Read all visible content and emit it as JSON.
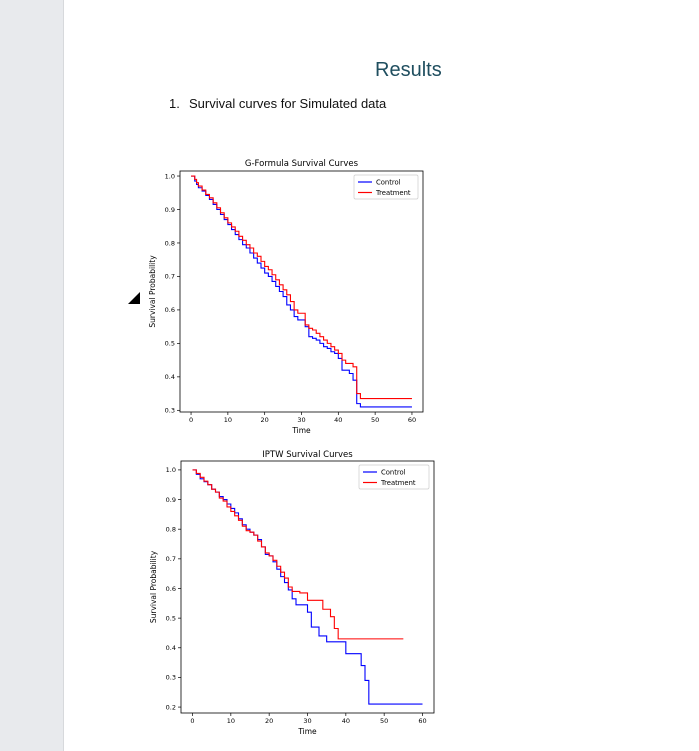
{
  "document": {
    "heading": "Results",
    "list_item_number": "1.",
    "list_item_text": "Survival curves for Simulated data"
  },
  "chart_data": [
    {
      "type": "line",
      "title": "G-Formula Survival Curves",
      "xlabel": "Time",
      "ylabel": "Survival Probability",
      "xlim": [
        -3,
        63
      ],
      "ylim": [
        0.295,
        1.015
      ],
      "xticks": [
        0,
        10,
        20,
        30,
        40,
        50,
        60
      ],
      "yticks": [
        0.3,
        0.4,
        0.5,
        0.6,
        0.7,
        0.8,
        0.9,
        1.0
      ],
      "legend": "top-right",
      "series": [
        {
          "name": "Control",
          "color": "#0000ff",
          "step": true,
          "points": [
            [
              0,
              1.0
            ],
            [
              1,
              0.985
            ],
            [
              1.5,
              0.975
            ],
            [
              2,
              0.965
            ],
            [
              3,
              0.955
            ],
            [
              4,
              0.942
            ],
            [
              5,
              0.93
            ],
            [
              6,
              0.915
            ],
            [
              7,
              0.9
            ],
            [
              8,
              0.885
            ],
            [
              9,
              0.87
            ],
            [
              10,
              0.855
            ],
            [
              11,
              0.84
            ],
            [
              12,
              0.825
            ],
            [
              13,
              0.81
            ],
            [
              14,
              0.795
            ],
            [
              15,
              0.785
            ],
            [
              16,
              0.77
            ],
            [
              17,
              0.755
            ],
            [
              18,
              0.74
            ],
            [
              19,
              0.725
            ],
            [
              20,
              0.71
            ],
            [
              21,
              0.7
            ],
            [
              22,
              0.685
            ],
            [
              23,
              0.67
            ],
            [
              24,
              0.655
            ],
            [
              25,
              0.64
            ],
            [
              26,
              0.615
            ],
            [
              27,
              0.6
            ],
            [
              28,
              0.58
            ],
            [
              29,
              0.57
            ],
            [
              30,
              0.57
            ],
            [
              31,
              0.55
            ],
            [
              32,
              0.52
            ],
            [
              33,
              0.515
            ],
            [
              34,
              0.51
            ],
            [
              35,
              0.5
            ],
            [
              36,
              0.49
            ],
            [
              37,
              0.485
            ],
            [
              38,
              0.475
            ],
            [
              39,
              0.47
            ],
            [
              40,
              0.455
            ],
            [
              41,
              0.42
            ],
            [
              42,
              0.42
            ],
            [
              43,
              0.41
            ],
            [
              44,
              0.39
            ],
            [
              45,
              0.32
            ],
            [
              46,
              0.31
            ],
            [
              60,
              0.31
            ]
          ]
        },
        {
          "name": "Treatment",
          "color": "#ff0000",
          "step": true,
          "points": [
            [
              0,
              1.0
            ],
            [
              1,
              0.99
            ],
            [
              1.5,
              0.98
            ],
            [
              2,
              0.97
            ],
            [
              3,
              0.958
            ],
            [
              4,
              0.945
            ],
            [
              5,
              0.935
            ],
            [
              6,
              0.92
            ],
            [
              7,
              0.905
            ],
            [
              8,
              0.89
            ],
            [
              9,
              0.875
            ],
            [
              10,
              0.86
            ],
            [
              11,
              0.848
            ],
            [
              12,
              0.835
            ],
            [
              13,
              0.82
            ],
            [
              14,
              0.808
            ],
            [
              15,
              0.795
            ],
            [
              16,
              0.785
            ],
            [
              17,
              0.77
            ],
            [
              18,
              0.76
            ],
            [
              19,
              0.745
            ],
            [
              20,
              0.73
            ],
            [
              21,
              0.72
            ],
            [
              22,
              0.705
            ],
            [
              23,
              0.69
            ],
            [
              24,
              0.675
            ],
            [
              25,
              0.66
            ],
            [
              26,
              0.645
            ],
            [
              27,
              0.625
            ],
            [
              28,
              0.6
            ],
            [
              29,
              0.59
            ],
            [
              30,
              0.59
            ],
            [
              31,
              0.555
            ],
            [
              32,
              0.545
            ],
            [
              33,
              0.54
            ],
            [
              34,
              0.53
            ],
            [
              35,
              0.52
            ],
            [
              36,
              0.51
            ],
            [
              37,
              0.5
            ],
            [
              38,
              0.49
            ],
            [
              39,
              0.48
            ],
            [
              40,
              0.47
            ],
            [
              41,
              0.45
            ],
            [
              42,
              0.44
            ],
            [
              43,
              0.44
            ],
            [
              44,
              0.43
            ],
            [
              45,
              0.35
            ],
            [
              46,
              0.335
            ],
            [
              60,
              0.335
            ]
          ]
        }
      ]
    },
    {
      "type": "line",
      "title": "IPTW Survival Curves",
      "xlabel": "Time",
      "ylabel": "Survival Probability",
      "xlim": [
        -3,
        63
      ],
      "ylim": [
        0.18,
        1.03
      ],
      "xticks": [
        0,
        10,
        20,
        30,
        40,
        50,
        60
      ],
      "yticks": [
        0.2,
        0.3,
        0.4,
        0.5,
        0.6,
        0.7,
        0.8,
        0.9,
        1.0
      ],
      "legend": "top-right",
      "series": [
        {
          "name": "Control",
          "color": "#0000ff",
          "step": true,
          "points": [
            [
              0,
              1.0
            ],
            [
              1,
              0.985
            ],
            [
              2,
              0.97
            ],
            [
              3,
              0.96
            ],
            [
              4,
              0.95
            ],
            [
              5,
              0.935
            ],
            [
              6,
              0.925
            ],
            [
              7,
              0.91
            ],
            [
              8,
              0.9
            ],
            [
              9,
              0.885
            ],
            [
              10,
              0.87
            ],
            [
              11,
              0.855
            ],
            [
              12,
              0.835
            ],
            [
              13,
              0.815
            ],
            [
              14,
              0.8
            ],
            [
              15,
              0.79
            ],
            [
              16,
              0.78
            ],
            [
              17,
              0.765
            ],
            [
              18,
              0.74
            ],
            [
              19,
              0.715
            ],
            [
              20,
              0.71
            ],
            [
              21,
              0.69
            ],
            [
              22,
              0.665
            ],
            [
              23,
              0.64
            ],
            [
              24,
              0.62
            ],
            [
              25,
              0.595
            ],
            [
              26,
              0.565
            ],
            [
              27,
              0.545
            ],
            [
              28,
              0.545
            ],
            [
              30,
              0.52
            ],
            [
              31,
              0.47
            ],
            [
              32,
              0.47
            ],
            [
              33,
              0.44
            ],
            [
              35,
              0.42
            ],
            [
              39,
              0.42
            ],
            [
              40,
              0.38
            ],
            [
              43,
              0.38
            ],
            [
              44,
              0.34
            ],
            [
              45,
              0.29
            ],
            [
              46,
              0.21
            ],
            [
              60,
              0.21
            ]
          ]
        },
        {
          "name": "Treatment",
          "color": "#ff0000",
          "step": true,
          "points": [
            [
              0,
              1.0
            ],
            [
              1,
              0.988
            ],
            [
              2,
              0.975
            ],
            [
              3,
              0.962
            ],
            [
              4,
              0.95
            ],
            [
              5,
              0.935
            ],
            [
              6,
              0.925
            ],
            [
              7,
              0.905
            ],
            [
              8,
              0.895
            ],
            [
              9,
              0.875
            ],
            [
              10,
              0.86
            ],
            [
              11,
              0.845
            ],
            [
              12,
              0.83
            ],
            [
              13,
              0.81
            ],
            [
              14,
              0.795
            ],
            [
              15,
              0.79
            ],
            [
              16,
              0.78
            ],
            [
              17,
              0.76
            ],
            [
              18,
              0.74
            ],
            [
              19,
              0.72
            ],
            [
              20,
              0.71
            ],
            [
              21,
              0.695
            ],
            [
              22,
              0.675
            ],
            [
              23,
              0.655
            ],
            [
              24,
              0.635
            ],
            [
              25,
              0.605
            ],
            [
              26,
              0.59
            ],
            [
              27,
              0.59
            ],
            [
              28,
              0.585
            ],
            [
              30,
              0.56
            ],
            [
              34,
              0.53
            ],
            [
              36,
              0.505
            ],
            [
              37,
              0.465
            ],
            [
              38,
              0.43
            ],
            [
              55,
              0.43
            ]
          ]
        }
      ]
    }
  ]
}
